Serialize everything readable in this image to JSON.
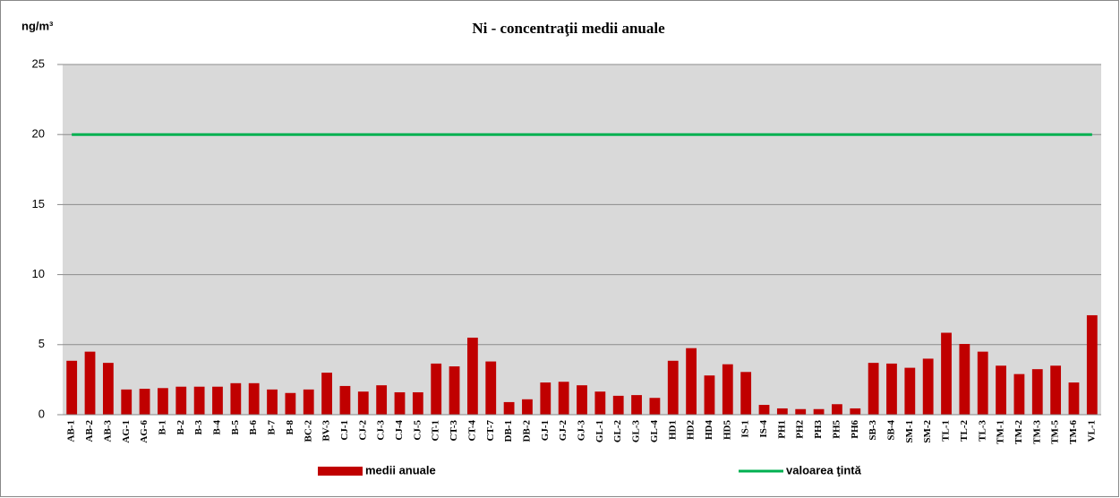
{
  "chart_data": {
    "type": "bar",
    "title": "Ni - concentraţii  medii anuale",
    "y_label": "ng/m³",
    "categories": [
      "AB-1",
      "AB-2",
      "AB-3",
      "AG-1",
      "AG-6",
      "B-1",
      "B-2",
      "B-3",
      "B-4",
      "B-5",
      "B-6",
      "B-7",
      "B-8",
      "BC-2",
      "BV-3",
      "CJ-1",
      "CJ-2",
      "CJ-3",
      "CJ-4",
      "CJ-5",
      "CT-1",
      "CT-3",
      "CT-4",
      "CT-7",
      "DB-1",
      "DB-2",
      "GJ-1",
      "GJ-2",
      "GJ-3",
      "GL-1",
      "GL-2",
      "GL-3",
      "GL-4",
      "HD1",
      "HD2",
      "HD4",
      "HD5",
      "IS-1",
      "IS-4",
      "PH1",
      "PH2",
      "PH3",
      "PH5",
      "PH6",
      "SB-3",
      "SB-4",
      "SM-1",
      "SM-2",
      "TL-1",
      "TL-2",
      "TL-3",
      "TM-1",
      "TM-2",
      "TM-3",
      "TM-5",
      "TM-6",
      "VL-1"
    ],
    "series": [
      {
        "name": "medii anuale",
        "type": "bar",
        "color": "#c00000",
        "values": [
          3.85,
          4.5,
          3.7,
          1.8,
          1.85,
          1.9,
          2.0,
          2.0,
          2.0,
          2.25,
          2.25,
          1.8,
          1.55,
          1.8,
          3.0,
          2.05,
          1.65,
          2.1,
          1.6,
          1.6,
          3.65,
          3.45,
          5.5,
          3.8,
          0.9,
          1.1,
          2.3,
          2.35,
          2.1,
          1.65,
          1.35,
          1.4,
          1.2,
          3.85,
          4.75,
          2.8,
          3.6,
          3.05,
          0.7,
          0.45,
          0.4,
          0.4,
          0.75,
          0.45,
          3.7,
          3.65,
          3.35,
          4.0,
          5.85,
          5.05,
          4.5,
          3.5,
          2.9,
          3.25,
          3.5,
          2.3,
          7.1
        ]
      },
      {
        "name": "valoarea ţintă",
        "type": "line",
        "color": "#00b050",
        "values": [
          20,
          20,
          20,
          20,
          20,
          20,
          20,
          20,
          20,
          20,
          20,
          20,
          20,
          20,
          20,
          20,
          20,
          20,
          20,
          20,
          20,
          20,
          20,
          20,
          20,
          20,
          20,
          20,
          20,
          20,
          20,
          20,
          20,
          20,
          20,
          20,
          20,
          20,
          20,
          20,
          20,
          20,
          20,
          20,
          20,
          20,
          20,
          20,
          20,
          20,
          20,
          20,
          20,
          20,
          20,
          20,
          20
        ]
      }
    ],
    "ylim": [
      0,
      25
    ],
    "yticks": [
      0,
      5,
      10,
      15,
      20,
      25
    ],
    "grid": true,
    "legend": "bottom"
  }
}
